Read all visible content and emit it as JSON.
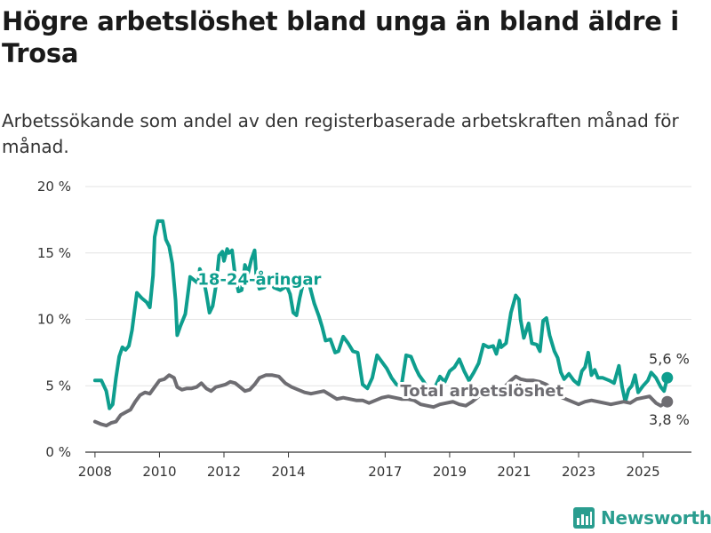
{
  "header": {
    "title": "Högre arbetslöshet bland unga än bland äldre i Trosa",
    "subtitle": "Arbetssökande som andel av den registerbaserade arbetskraften månad för månad."
  },
  "brand": {
    "name": "Newsworthy",
    "icon": "newsworthy-logo-icon",
    "color": "#2a9d8f"
  },
  "chart_data": {
    "type": "line",
    "ylim": [
      0,
      20
    ],
    "xlim": [
      2007.7,
      2026.5
    ],
    "y_ticks": [
      {
        "value": 0,
        "label": "0 %"
      },
      {
        "value": 5,
        "label": "5 %"
      },
      {
        "value": 10,
        "label": "10 %"
      },
      {
        "value": 15,
        "label": "15 %"
      },
      {
        "value": 20,
        "label": "20 %"
      }
    ],
    "x_ticks": [
      {
        "value": 2008,
        "label": "2008"
      },
      {
        "value": 2010,
        "label": "2010"
      },
      {
        "value": 2012,
        "label": "2012"
      },
      {
        "value": 2014,
        "label": "2014"
      },
      {
        "value": 2017,
        "label": "2017"
      },
      {
        "value": 2019,
        "label": "2019"
      },
      {
        "value": 2021,
        "label": "2021"
      },
      {
        "value": 2023,
        "label": "2023"
      },
      {
        "value": 2025,
        "label": "2025"
      }
    ],
    "grid": true,
    "series": [
      {
        "name": "18-24-åringar",
        "color": "#0e9e8e",
        "end_label": "5,6 %",
        "points": [
          [
            2008.0,
            5.4
          ],
          [
            2008.2,
            5.4
          ],
          [
            2008.35,
            4.6
          ],
          [
            2008.45,
            3.3
          ],
          [
            2008.55,
            3.6
          ],
          [
            2008.65,
            5.6
          ],
          [
            2008.75,
            7.2
          ],
          [
            2008.85,
            7.9
          ],
          [
            2008.95,
            7.7
          ],
          [
            2009.05,
            8.0
          ],
          [
            2009.15,
            9.2
          ],
          [
            2009.3,
            12.0
          ],
          [
            2009.45,
            11.6
          ],
          [
            2009.6,
            11.3
          ],
          [
            2009.7,
            10.9
          ],
          [
            2009.8,
            13.3
          ],
          [
            2009.85,
            16.2
          ],
          [
            2009.95,
            17.4
          ],
          [
            2010.1,
            17.4
          ],
          [
            2010.2,
            16.0
          ],
          [
            2010.3,
            15.5
          ],
          [
            2010.4,
            14.2
          ],
          [
            2010.5,
            11.4
          ],
          [
            2010.55,
            8.8
          ],
          [
            2010.65,
            9.5
          ],
          [
            2010.8,
            10.4
          ],
          [
            2010.95,
            13.2
          ],
          [
            2011.05,
            13.0
          ],
          [
            2011.2,
            12.7
          ],
          [
            2011.25,
            13.8
          ],
          [
            2011.35,
            13.2
          ],
          [
            2011.45,
            12.0
          ],
          [
            2011.55,
            10.5
          ],
          [
            2011.65,
            11.0
          ],
          [
            2011.75,
            12.5
          ],
          [
            2011.85,
            14.8
          ],
          [
            2011.95,
            15.1
          ],
          [
            2012.0,
            14.4
          ],
          [
            2012.1,
            15.3
          ],
          [
            2012.15,
            15.0
          ],
          [
            2012.25,
            15.2
          ],
          [
            2012.35,
            13.2
          ],
          [
            2012.45,
            12.1
          ],
          [
            2012.55,
            12.2
          ],
          [
            2012.65,
            14.1
          ],
          [
            2012.75,
            13.5
          ],
          [
            2012.85,
            14.5
          ],
          [
            2012.95,
            15.2
          ],
          [
            2013.0,
            13.3
          ],
          [
            2013.1,
            12.3
          ],
          [
            2013.25,
            12.4
          ],
          [
            2013.4,
            13.2
          ],
          [
            2013.55,
            12.4
          ],
          [
            2013.75,
            12.2
          ],
          [
            2013.95,
            12.5
          ],
          [
            2014.05,
            11.9
          ],
          [
            2014.15,
            10.5
          ],
          [
            2014.25,
            10.3
          ],
          [
            2014.35,
            11.6
          ],
          [
            2014.5,
            13.2
          ],
          [
            2014.65,
            12.6
          ],
          [
            2014.8,
            11.2
          ],
          [
            2014.95,
            10.2
          ],
          [
            2015.05,
            9.4
          ],
          [
            2015.15,
            8.4
          ],
          [
            2015.3,
            8.5
          ],
          [
            2015.45,
            7.5
          ],
          [
            2015.55,
            7.6
          ],
          [
            2015.7,
            8.7
          ],
          [
            2015.85,
            8.2
          ],
          [
            2016.0,
            7.6
          ],
          [
            2016.15,
            7.5
          ],
          [
            2016.3,
            5.1
          ],
          [
            2016.45,
            4.8
          ],
          [
            2016.6,
            5.6
          ],
          [
            2016.75,
            7.3
          ],
          [
            2016.9,
            6.8
          ],
          [
            2017.05,
            6.3
          ],
          [
            2017.2,
            5.6
          ],
          [
            2017.35,
            5.1
          ],
          [
            2017.5,
            4.9
          ],
          [
            2017.65,
            7.3
          ],
          [
            2017.8,
            7.2
          ],
          [
            2017.95,
            6.3
          ],
          [
            2018.05,
            5.8
          ],
          [
            2018.2,
            5.3
          ],
          [
            2018.35,
            4.6
          ],
          [
            2018.55,
            4.9
          ],
          [
            2018.7,
            5.7
          ],
          [
            2018.85,
            5.3
          ],
          [
            2019.0,
            6.1
          ],
          [
            2019.15,
            6.4
          ],
          [
            2019.3,
            7.0
          ],
          [
            2019.45,
            6.1
          ],
          [
            2019.6,
            5.4
          ],
          [
            2019.75,
            6.0
          ],
          [
            2019.9,
            6.7
          ],
          [
            2020.05,
            8.1
          ],
          [
            2020.2,
            7.9
          ],
          [
            2020.35,
            8.0
          ],
          [
            2020.45,
            7.4
          ],
          [
            2020.55,
            8.4
          ],
          [
            2020.6,
            7.9
          ],
          [
            2020.75,
            8.2
          ],
          [
            2020.9,
            10.5
          ],
          [
            2021.05,
            11.8
          ],
          [
            2021.15,
            11.5
          ],
          [
            2021.2,
            10.0
          ],
          [
            2021.3,
            8.6
          ],
          [
            2021.45,
            9.7
          ],
          [
            2021.55,
            8.2
          ],
          [
            2021.7,
            8.1
          ],
          [
            2021.8,
            7.6
          ],
          [
            2021.9,
            9.9
          ],
          [
            2022.0,
            10.1
          ],
          [
            2022.1,
            8.8
          ],
          [
            2022.25,
            7.6
          ],
          [
            2022.35,
            7.1
          ],
          [
            2022.45,
            6.0
          ],
          [
            2022.55,
            5.5
          ],
          [
            2022.7,
            5.9
          ],
          [
            2022.85,
            5.4
          ],
          [
            2023.0,
            5.1
          ],
          [
            2023.1,
            6.1
          ],
          [
            2023.2,
            6.4
          ],
          [
            2023.3,
            7.5
          ],
          [
            2023.4,
            5.8
          ],
          [
            2023.5,
            6.2
          ],
          [
            2023.6,
            5.6
          ],
          [
            2023.75,
            5.6
          ],
          [
            2023.95,
            5.4
          ],
          [
            2024.1,
            5.2
          ],
          [
            2024.25,
            6.5
          ],
          [
            2024.35,
            4.9
          ],
          [
            2024.45,
            3.8
          ],
          [
            2024.55,
            4.7
          ],
          [
            2024.65,
            5.0
          ],
          [
            2024.75,
            5.8
          ],
          [
            2024.85,
            4.5
          ],
          [
            2025.0,
            5.0
          ],
          [
            2025.15,
            5.4
          ],
          [
            2025.25,
            6.0
          ],
          [
            2025.4,
            5.6
          ],
          [
            2025.55,
            4.9
          ],
          [
            2025.65,
            4.6
          ],
          [
            2025.75,
            5.6
          ]
        ]
      },
      {
        "name": "Total arbetslöshet",
        "color": "#6e6d72",
        "end_label": "3,8 %",
        "points": [
          [
            2008.0,
            2.3
          ],
          [
            2008.2,
            2.1
          ],
          [
            2008.35,
            2.0
          ],
          [
            2008.5,
            2.2
          ],
          [
            2008.65,
            2.3
          ],
          [
            2008.8,
            2.8
          ],
          [
            2008.95,
            3.0
          ],
          [
            2009.1,
            3.2
          ],
          [
            2009.25,
            3.8
          ],
          [
            2009.4,
            4.3
          ],
          [
            2009.55,
            4.5
          ],
          [
            2009.7,
            4.4
          ],
          [
            2009.85,
            4.9
          ],
          [
            2010.0,
            5.4
          ],
          [
            2010.15,
            5.5
          ],
          [
            2010.3,
            5.8
          ],
          [
            2010.45,
            5.6
          ],
          [
            2010.55,
            4.9
          ],
          [
            2010.7,
            4.7
          ],
          [
            2010.85,
            4.8
          ],
          [
            2011.0,
            4.8
          ],
          [
            2011.15,
            4.9
          ],
          [
            2011.3,
            5.2
          ],
          [
            2011.45,
            4.8
          ],
          [
            2011.6,
            4.6
          ],
          [
            2011.75,
            4.9
          ],
          [
            2011.9,
            5.0
          ],
          [
            2012.05,
            5.1
          ],
          [
            2012.2,
            5.3
          ],
          [
            2012.35,
            5.2
          ],
          [
            2012.5,
            4.9
          ],
          [
            2012.65,
            4.6
          ],
          [
            2012.8,
            4.7
          ],
          [
            2012.95,
            5.1
          ],
          [
            2013.1,
            5.6
          ],
          [
            2013.3,
            5.8
          ],
          [
            2013.5,
            5.8
          ],
          [
            2013.7,
            5.7
          ],
          [
            2013.9,
            5.2
          ],
          [
            2014.1,
            4.9
          ],
          [
            2014.3,
            4.7
          ],
          [
            2014.5,
            4.5
          ],
          [
            2014.7,
            4.4
          ],
          [
            2014.9,
            4.5
          ],
          [
            2015.1,
            4.6
          ],
          [
            2015.3,
            4.3
          ],
          [
            2015.5,
            4.0
          ],
          [
            2015.7,
            4.1
          ],
          [
            2015.9,
            4.0
          ],
          [
            2016.1,
            3.9
          ],
          [
            2016.3,
            3.9
          ],
          [
            2016.5,
            3.7
          ],
          [
            2016.7,
            3.9
          ],
          [
            2016.9,
            4.1
          ],
          [
            2017.1,
            4.2
          ],
          [
            2017.3,
            4.1
          ],
          [
            2017.5,
            4.0
          ],
          [
            2017.7,
            4.0
          ],
          [
            2017.9,
            3.9
          ],
          [
            2018.1,
            3.6
          ],
          [
            2018.3,
            3.5
          ],
          [
            2018.5,
            3.4
          ],
          [
            2018.7,
            3.6
          ],
          [
            2018.9,
            3.7
          ],
          [
            2019.1,
            3.8
          ],
          [
            2019.3,
            3.6
          ],
          [
            2019.5,
            3.5
          ],
          [
            2019.7,
            3.8
          ],
          [
            2019.9,
            4.2
          ],
          [
            2020.1,
            4.4
          ],
          [
            2020.3,
            4.5
          ],
          [
            2020.5,
            4.6
          ],
          [
            2020.7,
            4.9
          ],
          [
            2020.9,
            5.4
          ],
          [
            2021.05,
            5.7
          ],
          [
            2021.2,
            5.5
          ],
          [
            2021.4,
            5.4
          ],
          [
            2021.6,
            5.4
          ],
          [
            2021.8,
            5.3
          ],
          [
            2022.0,
            5.1
          ],
          [
            2022.2,
            4.7
          ],
          [
            2022.4,
            4.2
          ],
          [
            2022.6,
            4.0
          ],
          [
            2022.8,
            3.8
          ],
          [
            2023.0,
            3.6
          ],
          [
            2023.2,
            3.8
          ],
          [
            2023.4,
            3.9
          ],
          [
            2023.6,
            3.8
          ],
          [
            2023.8,
            3.7
          ],
          [
            2024.0,
            3.6
          ],
          [
            2024.2,
            3.7
          ],
          [
            2024.4,
            3.8
          ],
          [
            2024.6,
            3.7
          ],
          [
            2024.8,
            4.0
          ],
          [
            2025.0,
            4.1
          ],
          [
            2025.2,
            4.2
          ],
          [
            2025.4,
            3.7
          ],
          [
            2025.55,
            3.5
          ],
          [
            2025.75,
            3.8
          ]
        ]
      }
    ],
    "annotations": [
      {
        "text": "18-24-åringar",
        "x": 2013.1,
        "y": 12.6,
        "series": 0
      },
      {
        "text": "Total arbetslöshet",
        "x": 2020.0,
        "y": 4.2,
        "series": 1
      }
    ]
  }
}
